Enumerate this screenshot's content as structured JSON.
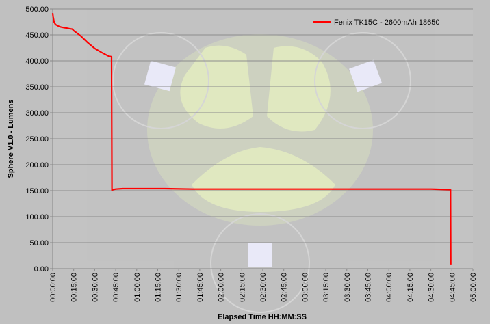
{
  "chart_data": {
    "type": "line",
    "xlabel": "Elapsed Time HH:MM:SS",
    "ylabel": "Sphere V1.0 - Lumens",
    "ylim": [
      0,
      500
    ],
    "yticks": [
      "0.00",
      "50.00",
      "100.00",
      "150.00",
      "200.00",
      "250.00",
      "300.00",
      "350.00",
      "400.00",
      "450.00",
      "500.00"
    ],
    "xlim_minutes": [
      0,
      300
    ],
    "xticks": [
      "00:00:00",
      "00:15:00",
      "00:30:00",
      "00:45:00",
      "01:00:00",
      "01:15:00",
      "01:30:00",
      "01:45:00",
      "02:00:00",
      "02:15:00",
      "02:30:00",
      "02:45:00",
      "03:00:00",
      "03:15:00",
      "03:30:00",
      "03:45:00",
      "04:00:00",
      "04:15:00",
      "04:30:00",
      "04:45:00",
      "05:00:00"
    ],
    "grid": "horizontal",
    "legend_position": "top-right",
    "series": [
      {
        "name": "Fenix TK15C - 2600mAh 18650",
        "color": "#ff0000",
        "x_minutes": [
          0,
          0.3,
          1,
          2,
          4,
          6,
          8,
          10,
          12,
          14,
          15,
          20,
          25,
          30,
          35,
          40,
          42,
          42.3,
          43,
          45,
          50,
          60,
          80,
          100,
          120,
          140,
          160,
          180,
          200,
          220,
          240,
          260,
          270,
          283,
          284,
          284.2
        ],
        "y": [
          492,
          485,
          475,
          470,
          467,
          465,
          464,
          463,
          462,
          461,
          458,
          448,
          435,
          424,
          416,
          409,
          408,
          151,
          152,
          153,
          154,
          154,
          154,
          153,
          153,
          153,
          153,
          153,
          153,
          153,
          153,
          153,
          153,
          152,
          152,
          8
        ]
      }
    ]
  }
}
